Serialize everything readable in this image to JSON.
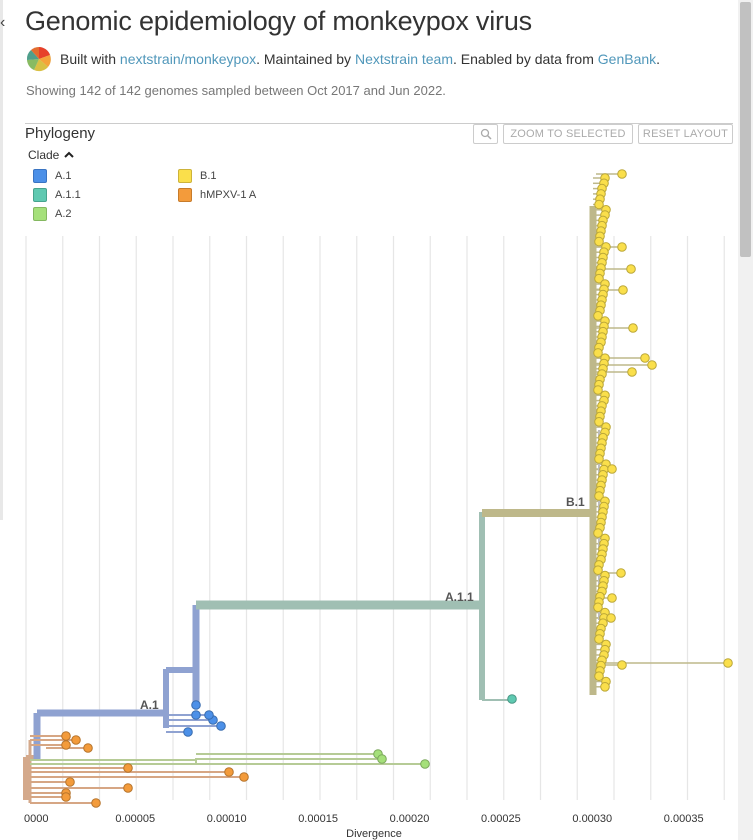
{
  "header": {
    "title": "Genomic epidemiology of monkeypox virus",
    "built_with_prefix": "Built with ",
    "built_with_link": "nextstrain/monkeypox",
    "maintained_prefix": ". Maintained by ",
    "maintainer_link": "Nextstrain team",
    "data_prefix": ". Enabled by data from ",
    "data_link": "GenBank",
    "data_suffix": "."
  },
  "summary": "Showing 142 of 142 genomes sampled between Oct 2017 and Jun 2022.",
  "panel": {
    "title": "Phylogeny",
    "zoom_to_selected": "ZOOM TO SELECTED",
    "reset_layout": "RESET LAYOUT"
  },
  "legend": {
    "title": "Clade",
    "items": [
      {
        "label": "A.1",
        "color": "#4C90E8"
      },
      {
        "label": "A.1.1",
        "color": "#5FC9B1"
      },
      {
        "label": "A.2",
        "color": "#A5E07A"
      },
      {
        "label": "B.1",
        "color": "#FADF4B"
      },
      {
        "label": "hMPXV-1 A",
        "color": "#F39B3B"
      }
    ]
  },
  "axis": {
    "label": "Divergence",
    "ticks": [
      "0000",
      "0.00005",
      "0.00010",
      "0.00015",
      "0.00020",
      "0.00025",
      "0.00030",
      "0.00035"
    ]
  },
  "branch_labels": {
    "b1": "B.1",
    "a11": "A.1.1",
    "a1": "A.1"
  },
  "colors": {
    "a1_branch": "#8FA2D1",
    "a11_branch": "#A0BFB3",
    "b1_branch": "#BEB88A",
    "a2_branch": "#B6CB96",
    "hmpxv_branch": "#D6A684",
    "root_branch": "#D4A98B",
    "grid": "#e6e6e6",
    "gray_branch": "#BDBDBD"
  }
}
